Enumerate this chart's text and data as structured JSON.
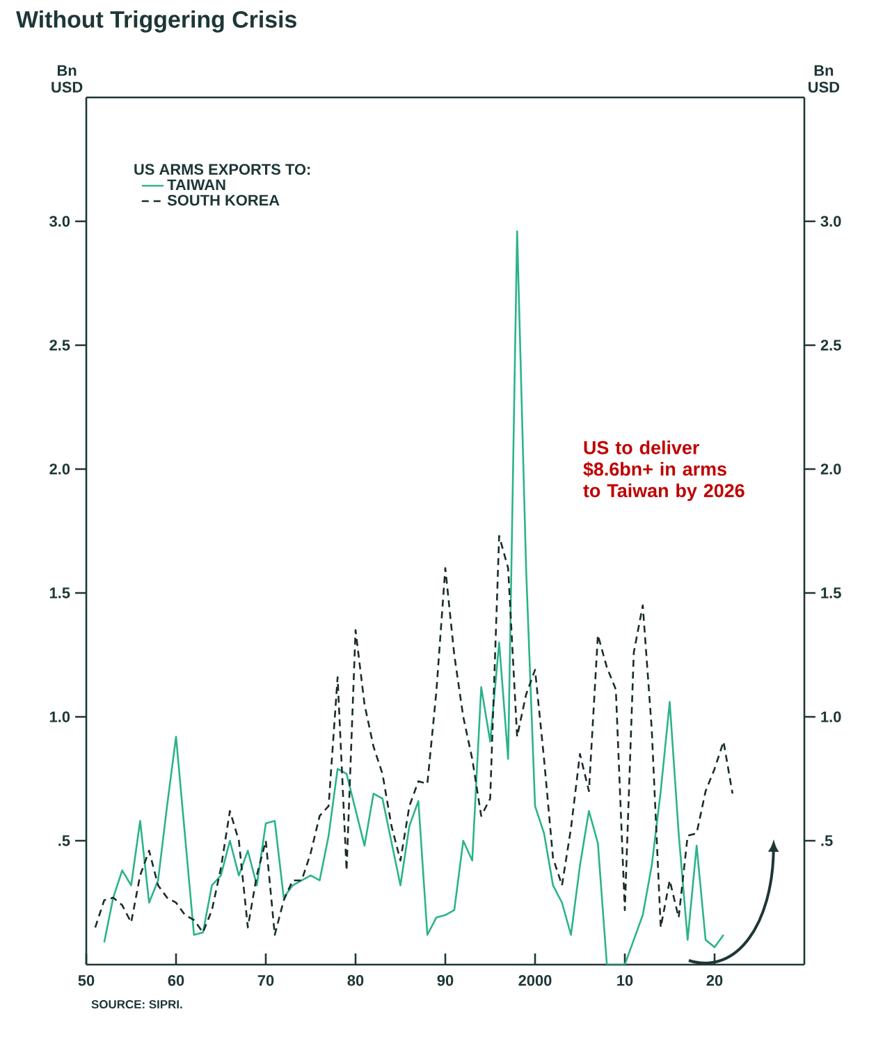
{
  "chart_data": {
    "type": "line",
    "title": "Without Triggering Crisis",
    "ylabel": "Bn USD",
    "y2label": "Bn USD",
    "legend_title": "US ARMS EXPORTS TO:",
    "legend": "top left",
    "marker": "none",
    "xlim": [
      1950,
      2030
    ],
    "xticks": [
      {
        "value": 1950,
        "label": "50"
      },
      {
        "value": 1960,
        "label": "60"
      },
      {
        "value": 1970,
        "label": "70"
      },
      {
        "value": 1980,
        "label": "80"
      },
      {
        "value": 1990,
        "label": "90"
      },
      {
        "value": 2000,
        "label": "2000"
      },
      {
        "value": 2010,
        "label": "10"
      },
      {
        "value": 2020,
        "label": "20"
      }
    ],
    "ylim": [
      0,
      3.5
    ],
    "yticks": [
      {
        "value": 0.5,
        "label": ".5"
      },
      {
        "value": 1.0,
        "label": "1.0"
      },
      {
        "value": 1.5,
        "label": "1.5"
      },
      {
        "value": 2.0,
        "label": "2.0"
      },
      {
        "value": 2.5,
        "label": "2.5"
      },
      {
        "value": 3.0,
        "label": "3.0"
      }
    ],
    "y2lim": [
      0,
      3.5
    ],
    "y2ticks": [
      {
        "value": 0.5,
        "label": ".5"
      },
      {
        "value": 1.0,
        "label": "1.0"
      },
      {
        "value": 1.5,
        "label": "1.5"
      },
      {
        "value": 2.0,
        "label": "2.0"
      },
      {
        "value": 2.5,
        "label": "2.5"
      },
      {
        "value": 3.0,
        "label": "3.0"
      }
    ],
    "series": [
      {
        "name": "TAIWAN",
        "color": "#2bb38a",
        "line_style": "solid",
        "x": [
          1952,
          1953,
          1954,
          1955,
          1956,
          1957,
          1958,
          1959,
          1960,
          1962,
          1963,
          1964,
          1965,
          1966,
          1967,
          1968,
          1969,
          1970,
          1971,
          1972,
          1973,
          1975,
          1976,
          1977,
          1978,
          1979,
          1981,
          1982,
          1983,
          1985,
          1986,
          1987,
          1988,
          1989,
          1990,
          1991,
          1992,
          1993,
          1994,
          1995,
          1996,
          1997,
          1998,
          1999,
          2000,
          2001,
          2002,
          2003,
          2004,
          2005,
          2006,
          2007,
          2008,
          2009,
          2010,
          2011,
          2012,
          2013,
          2014,
          2015,
          2016,
          2017,
          2018,
          2019,
          2020,
          2021
        ],
        "values": [
          0.09,
          0.27,
          0.38,
          0.32,
          0.58,
          0.25,
          0.34,
          0.64,
          0.92,
          0.12,
          0.13,
          0.32,
          0.36,
          0.5,
          0.36,
          0.46,
          0.32,
          0.57,
          0.58,
          0.27,
          0.32,
          0.36,
          0.34,
          0.52,
          0.79,
          0.77,
          0.48,
          0.69,
          0.67,
          0.32,
          0.56,
          0.66,
          0.12,
          0.19,
          0.2,
          0.22,
          0.5,
          0.42,
          1.12,
          0.9,
          1.3,
          0.83,
          2.96,
          1.6,
          0.64,
          0.53,
          0.32,
          0.25,
          0.12,
          0.4,
          0.62,
          0.49,
          0.0,
          0.0,
          0.0,
          0.1,
          0.2,
          0.4,
          0.7,
          1.06,
          0.53,
          0.1,
          0.48,
          0.1,
          0.07,
          0.12
        ]
      },
      {
        "name": "SOUTH KOREA",
        "color": "#1a2b2b",
        "line_style": "dashed",
        "x": [
          1951,
          1952,
          1953,
          1954,
          1955,
          1956,
          1957,
          1958,
          1959,
          1960,
          1961,
          1962,
          1963,
          1964,
          1965,
          1966,
          1967,
          1968,
          1969,
          1970,
          1971,
          1972,
          1973,
          1974,
          1975,
          1976,
          1977,
          1978,
          1979,
          1980,
          1981,
          1982,
          1983,
          1984,
          1985,
          1986,
          1987,
          1988,
          1989,
          1990,
          1991,
          1992,
          1993,
          1994,
          1995,
          1996,
          1997,
          1998,
          1999,
          2000,
          2001,
          2002,
          2003,
          2004,
          2005,
          2006,
          2007,
          2008,
          2009,
          2010,
          2011,
          2012,
          2013,
          2014,
          2015,
          2016,
          2017,
          2018,
          2019,
          2020,
          2021,
          2022
        ],
        "values": [
          0.15,
          0.26,
          0.27,
          0.24,
          0.17,
          0.36,
          0.46,
          0.32,
          0.27,
          0.25,
          0.2,
          0.18,
          0.13,
          0.22,
          0.39,
          0.62,
          0.5,
          0.15,
          0.36,
          0.5,
          0.12,
          0.26,
          0.34,
          0.34,
          0.45,
          0.6,
          0.64,
          1.16,
          0.38,
          1.35,
          1.05,
          0.88,
          0.77,
          0.56,
          0.42,
          0.64,
          0.74,
          0.73,
          1.1,
          1.6,
          1.25,
          1.0,
          0.83,
          0.6,
          0.67,
          1.73,
          1.6,
          0.92,
          1.09,
          1.19,
          0.83,
          0.43,
          0.32,
          0.55,
          0.85,
          0.7,
          1.33,
          1.2,
          1.11,
          0.22,
          1.26,
          1.45,
          0.95,
          0.15,
          0.34,
          0.19,
          0.52,
          0.53,
          0.7,
          0.79,
          0.9,
          0.69
        ]
      }
    ],
    "annotations": [
      "US to deliver $8.6bn+ in arms to Taiwan by 2026",
      "SOURCE: SIPRI."
    ]
  }
}
